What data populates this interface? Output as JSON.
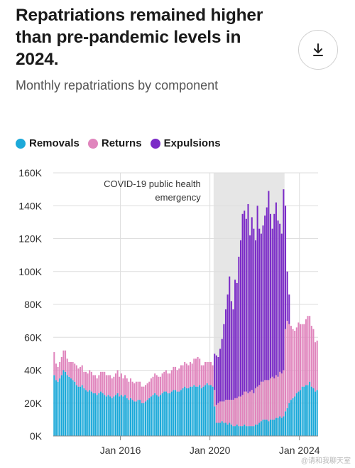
{
  "header": {
    "title": "Repatriations remained higher than pre-pandemic levels in 2024.",
    "subtitle": "Monthly repatriations by component",
    "download_icon": "download-icon"
  },
  "colors": {
    "removals": "#1ca9d9",
    "returns": "#e085bd",
    "expulsions": "#7b2bc7",
    "shade": "#e6e6e6",
    "grid": "#dddddd"
  },
  "chart_data": {
    "type": "bar",
    "stacked": true,
    "title": "Repatriations remained higher than pre-pandemic levels in 2024.",
    "subtitle": "Monthly repatriations by component",
    "xlabel": "",
    "ylabel": "",
    "ylim": [
      0,
      160000
    ],
    "yticks": [
      0,
      20000,
      40000,
      60000,
      80000,
      100000,
      120000,
      140000,
      160000
    ],
    "ytick_labels": [
      "0K",
      "20K",
      "40K",
      "60K",
      "80K",
      "100K",
      "120K",
      "140K",
      "160K"
    ],
    "x_start": "2013-01",
    "x_end": "2024-06",
    "xtick_labels": [
      {
        "label": "Jan 2016",
        "month_index": 36
      },
      {
        "label": "Jan 2020",
        "month_index": 84
      },
      {
        "label": "Jan 2024",
        "month_index": 132
      }
    ],
    "legend": "top-left",
    "grid": true,
    "annotation": {
      "text": [
        "COVID-19 public health",
        "emergency"
      ],
      "start_index": 86,
      "end_index": 124
    },
    "series": [
      {
        "name": "Removals",
        "values": [
          37000,
          34000,
          33000,
          35000,
          37000,
          40000,
          39000,
          37000,
          36000,
          35000,
          34000,
          33000,
          31000,
          30000,
          30000,
          31000,
          29000,
          28000,
          27000,
          28000,
          27000,
          26000,
          26000,
          25000,
          26000,
          27000,
          26000,
          25000,
          24000,
          25000,
          24000,
          23000,
          24000,
          25000,
          26000,
          24000,
          25000,
          24000,
          25000,
          23000,
          22000,
          23000,
          22000,
          21000,
          21000,
          22000,
          22000,
          20000,
          20000,
          21000,
          22000,
          23000,
          24000,
          25000,
          26000,
          25000,
          24000,
          25000,
          26000,
          27000,
          27000,
          26000,
          26000,
          27000,
          28000,
          28000,
          27000,
          27000,
          28000,
          29000,
          30000,
          29000,
          29000,
          30000,
          30000,
          31000,
          30000,
          30000,
          31000,
          29000,
          30000,
          31000,
          32000,
          31000,
          31000,
          30000,
          18000,
          8000,
          8000,
          8000,
          9000,
          8000,
          8000,
          7000,
          8000,
          7000,
          6000,
          6000,
          7000,
          6000,
          6000,
          6000,
          7000,
          6000,
          6000,
          6000,
          6000,
          6000,
          7000,
          7000,
          8000,
          9000,
          10000,
          10000,
          10000,
          9000,
          10000,
          10000,
          10000,
          11000,
          11000,
          12000,
          11000,
          12000,
          15000,
          17000,
          20000,
          22000,
          23000,
          24000,
          26000,
          27000,
          28000,
          30000,
          30000,
          31000,
          31000,
          33000,
          30000,
          29000,
          27000,
          28000
        ],
        "value_note": "monthly counts, Jan 2013 - Jun 2024"
      },
      {
        "name": "Returns",
        "values": [
          14000,
          10000,
          9000,
          10000,
          11000,
          12000,
          13000,
          10000,
          9000,
          10000,
          11000,
          11000,
          12000,
          11000,
          12000,
          12000,
          10000,
          11000,
          11000,
          12000,
          12000,
          11000,
          11000,
          10000,
          11000,
          12000,
          13000,
          14000,
          13000,
          12000,
          13000,
          12000,
          12000,
          13000,
          14000,
          12000,
          13000,
          11000,
          12000,
          12000,
          11000,
          12000,
          11000,
          11000,
          12000,
          11000,
          11000,
          10000,
          10000,
          10000,
          10000,
          10000,
          11000,
          11000,
          12000,
          12000,
          12000,
          11000,
          12000,
          12000,
          13000,
          12000,
          12000,
          13000,
          14000,
          14000,
          13000,
          14000,
          15000,
          14000,
          15000,
          15000,
          14000,
          15000,
          14000,
          16000,
          17000,
          18000,
          16000,
          14000,
          13000,
          14000,
          13000,
          14000,
          14000,
          13000,
          10000,
          11000,
          12000,
          13000,
          12000,
          13000,
          14000,
          15000,
          14000,
          15000,
          16000,
          17000,
          16000,
          18000,
          18000,
          19000,
          20000,
          21000,
          20000,
          21000,
          22000,
          20000,
          22000,
          23000,
          23000,
          24000,
          23000,
          24000,
          24000,
          25000,
          25000,
          26000,
          25000,
          26000,
          25000,
          27000,
          27000,
          28000,
          50000,
          53000,
          48000,
          45000,
          42000,
          40000,
          40000,
          42000,
          40000,
          38000,
          38000,
          40000,
          42000,
          40000,
          37000,
          36000,
          30000,
          30000
        ],
        "value_note": "monthly counts, Jan 2013 - Jun 2024"
      },
      {
        "name": "Expulsions",
        "values": [
          0,
          0,
          0,
          0,
          0,
          0,
          0,
          0,
          0,
          0,
          0,
          0,
          0,
          0,
          0,
          0,
          0,
          0,
          0,
          0,
          0,
          0,
          0,
          0,
          0,
          0,
          0,
          0,
          0,
          0,
          0,
          0,
          0,
          0,
          0,
          0,
          0,
          0,
          0,
          0,
          0,
          0,
          0,
          0,
          0,
          0,
          0,
          0,
          0,
          0,
          0,
          0,
          0,
          0,
          0,
          0,
          0,
          0,
          0,
          0,
          0,
          0,
          0,
          0,
          0,
          0,
          0,
          0,
          0,
          0,
          0,
          0,
          0,
          0,
          0,
          0,
          0,
          0,
          0,
          0,
          0,
          0,
          0,
          0,
          0,
          0,
          22000,
          30000,
          28000,
          32000,
          38000,
          47000,
          55000,
          64000,
          75000,
          60000,
          55000,
          72000,
          70000,
          85000,
          95000,
          110000,
          110000,
          105000,
          115000,
          95000,
          105000,
          100000,
          90000,
          110000,
          95000,
          90000,
          95000,
          100000,
          105000,
          115000,
          100000,
          90000,
          100000,
          105000,
          95000,
          90000,
          85000,
          110000,
          75000,
          30000,
          18000,
          0,
          0,
          0,
          0,
          0,
          0,
          0,
          0,
          0,
          0,
          0,
          0,
          0,
          0,
          0,
          0,
          0,
          0,
          0,
          0,
          0,
          0,
          0
        ],
        "value_note": "monthly counts, Jan 2013 - Jun 2024"
      }
    ]
  },
  "watermark": "@请和我聊天室"
}
